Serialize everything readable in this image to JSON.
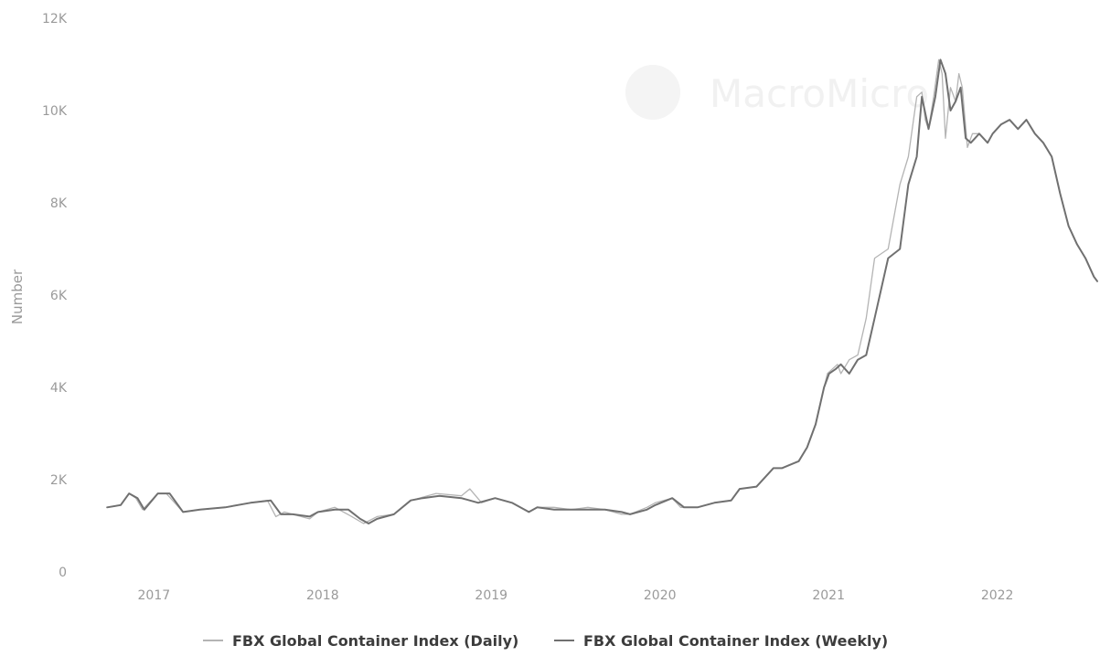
{
  "chart_data": {
    "type": "line",
    "title": "",
    "ylabel": "Number",
    "xlabel": "",
    "ylim": [
      0,
      12000
    ],
    "yticks": [
      0,
      2000,
      4000,
      6000,
      8000,
      10000,
      12000
    ],
    "ytick_labels": [
      "0",
      "2K",
      "4K",
      "6K",
      "8K",
      "10K",
      "12K"
    ],
    "xlim": [
      2016.7,
      2022.62
    ],
    "xticks": [
      2017,
      2018,
      2019,
      2020,
      2021,
      2022
    ],
    "xtick_labels": [
      "2017",
      "2018",
      "2019",
      "2020",
      "2021",
      "2022"
    ],
    "grid": false,
    "legend_position": "bottom-center",
    "watermark": "MacroMicro",
    "series": [
      {
        "name": "FBX Global Container Index (Daily)",
        "color": "#b4b4b4",
        "x": [
          2016.75,
          2016.83,
          2016.88,
          2016.92,
          2016.96,
          2017.05,
          2017.1,
          2017.2,
          2017.3,
          2017.45,
          2017.6,
          2017.7,
          2017.75,
          2017.8,
          2017.85,
          2017.95,
          2018.0,
          2018.1,
          2018.2,
          2018.27,
          2018.35,
          2018.45,
          2018.55,
          2018.6,
          2018.7,
          2018.85,
          2018.9,
          2018.97,
          2019.05,
          2019.15,
          2019.25,
          2019.3,
          2019.4,
          2019.5,
          2019.6,
          2019.7,
          2019.8,
          2019.85,
          2019.95,
          2020.0,
          2020.1,
          2020.15,
          2020.25,
          2020.35,
          2020.45,
          2020.5,
          2020.6,
          2020.7,
          2020.75,
          2020.85,
          2020.9,
          2020.95,
          2021.0,
          2021.02,
          2021.05,
          2021.08,
          2021.1,
          2021.15,
          2021.2,
          2021.25,
          2021.3,
          2021.38,
          2021.45,
          2021.5,
          2021.55,
          2021.58,
          2021.6,
          2021.62,
          2021.65,
          2021.68,
          2021.7,
          2021.72,
          2021.75,
          2021.78,
          2021.8,
          2021.82,
          2021.85,
          2021.88,
          2021.92,
          2021.97,
          2022.0,
          2022.05,
          2022.1,
          2022.15,
          2022.2,
          2022.25,
          2022.3,
          2022.35,
          2022.4,
          2022.45,
          2022.5,
          2022.55,
          2022.6,
          2022.62
        ],
        "values": [
          1400,
          1450,
          1700,
          1600,
          1350,
          1700,
          1700,
          1300,
          1350,
          1400,
          1500,
          1550,
          1200,
          1300,
          1250,
          1150,
          1300,
          1400,
          1200,
          1050,
          1200,
          1250,
          1550,
          1600,
          1700,
          1650,
          1800,
          1500,
          1600,
          1500,
          1300,
          1400,
          1400,
          1350,
          1400,
          1350,
          1250,
          1250,
          1400,
          1500,
          1600,
          1400,
          1400,
          1500,
          1550,
          1800,
          1850,
          2250,
          2250,
          2400,
          2700,
          3200,
          4000,
          4300,
          4400,
          4500,
          4300,
          4600,
          4700,
          5500,
          6800,
          7000,
          8400,
          9000,
          10300,
          10400,
          9800,
          9600,
          10300,
          11100,
          10800,
          9400,
          10500,
          10200,
          10800,
          10500,
          9200,
          9500,
          9500,
          9300,
          9500,
          9700,
          9800,
          9600,
          9800,
          9500,
          9300,
          9000,
          8200,
          7500,
          7100,
          6800,
          6400,
          6300
        ]
      },
      {
        "name": "FBX Global Container Index (Weekly)",
        "color": "#707070",
        "x": [
          2016.75,
          2016.83,
          2016.88,
          2016.93,
          2016.97,
          2017.05,
          2017.12,
          2017.2,
          2017.3,
          2017.45,
          2017.6,
          2017.72,
          2017.78,
          2017.85,
          2017.95,
          2018.0,
          2018.1,
          2018.18,
          2018.25,
          2018.3,
          2018.35,
          2018.45,
          2018.55,
          2018.62,
          2018.72,
          2018.85,
          2018.95,
          2019.05,
          2019.15,
          2019.25,
          2019.3,
          2019.4,
          2019.5,
          2019.6,
          2019.7,
          2019.8,
          2019.85,
          2019.95,
          2020.0,
          2020.1,
          2020.17,
          2020.25,
          2020.35,
          2020.45,
          2020.5,
          2020.6,
          2020.7,
          2020.75,
          2020.85,
          2020.9,
          2020.95,
          2021.0,
          2021.03,
          2021.07,
          2021.1,
          2021.15,
          2021.2,
          2021.25,
          2021.3,
          2021.38,
          2021.45,
          2021.5,
          2021.55,
          2021.58,
          2021.62,
          2021.66,
          2021.69,
          2021.72,
          2021.75,
          2021.78,
          2021.81,
          2021.84,
          2021.87,
          2021.92,
          2021.97,
          2022.0,
          2022.05,
          2022.1,
          2022.15,
          2022.2,
          2022.25,
          2022.3,
          2022.35,
          2022.4,
          2022.45,
          2022.5,
          2022.55,
          2022.6,
          2022.62
        ],
        "values": [
          1400,
          1450,
          1700,
          1600,
          1350,
          1700,
          1700,
          1300,
          1350,
          1400,
          1500,
          1550,
          1250,
          1250,
          1200,
          1300,
          1350,
          1350,
          1150,
          1050,
          1150,
          1250,
          1550,
          1600,
          1650,
          1600,
          1500,
          1600,
          1500,
          1300,
          1400,
          1350,
          1350,
          1350,
          1350,
          1300,
          1250,
          1350,
          1450,
          1600,
          1400,
          1400,
          1500,
          1550,
          1800,
          1850,
          2250,
          2250,
          2400,
          2700,
          3200,
          4000,
          4300,
          4400,
          4500,
          4300,
          4600,
          4700,
          5500,
          6800,
          7000,
          8400,
          9000,
          10300,
          9600,
          10300,
          11100,
          10800,
          10000,
          10200,
          10500,
          9400,
          9300,
          9500,
          9300,
          9500,
          9700,
          9800,
          9600,
          9800,
          9500,
          9300,
          9000,
          8200,
          7500,
          7100,
          6800,
          6400,
          6300
        ]
      }
    ]
  }
}
